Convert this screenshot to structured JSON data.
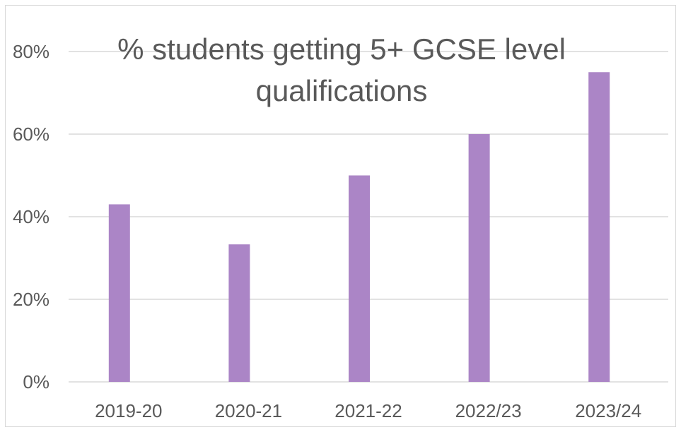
{
  "chart_data": {
    "type": "bar",
    "title_lines": [
      "% students getting 5+ GCSE level",
      "qualifications"
    ],
    "categories": [
      "2019-20",
      "2020-21",
      "2021-22",
      "2022/23",
      "2023/24"
    ],
    "values": [
      43,
      33.3,
      50,
      60,
      75
    ],
    "ylim": [
      0,
      80
    ],
    "yticks": [
      0,
      20,
      40,
      60,
      80
    ],
    "ytick_labels": [
      "0%",
      "20%",
      "40%",
      "60%",
      "80%"
    ],
    "bar_color": "#ab85c6",
    "grid_color": "#d9d9d9",
    "text_color": "#595959",
    "grid": true,
    "legend": "none"
  }
}
